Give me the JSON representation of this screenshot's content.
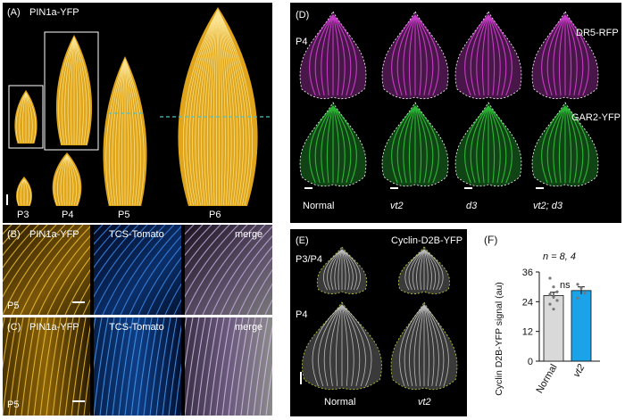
{
  "panelA": {
    "id": "(A)",
    "marker": "PIN1a-YFP",
    "stages": [
      "P3",
      "P4",
      "P5",
      "P6"
    ],
    "colors": {
      "leaf": "#e0a51a",
      "vein": "#fff0a8",
      "dash": "#4ec1c6"
    }
  },
  "panelB": {
    "id": "(B)",
    "labels": [
      "PIN1a-YFP",
      "TCS-Tomato",
      "merge"
    ],
    "stage": "P5"
  },
  "panelC": {
    "id": "(C)",
    "labels": [
      "PIN1a-YFP",
      "TCS-Tomato",
      "merge"
    ],
    "stage": "P5"
  },
  "panelD": {
    "id": "(D)",
    "stage": "P4",
    "marker_top": "DR5-RFP",
    "marker_bottom": "GAR2-YFP",
    "genotypes": [
      "Normal",
      "vt2",
      "d3",
      "vt2; d3"
    ],
    "colors": {
      "magenta": "#d23fd2",
      "green": "#2fc23a"
    }
  },
  "panelE": {
    "id": "(E)",
    "marker": "Cyclin-D2B-YFP",
    "rows": [
      "P3/P4",
      "P4"
    ],
    "genotypes": [
      "Normal",
      "vt2"
    ]
  },
  "panelF": {
    "id": "(F)",
    "n_label": "n = 8, 4",
    "sig_label": "ns"
  },
  "chart_data": {
    "type": "bar",
    "categories": [
      "Normal",
      "vt2"
    ],
    "values": [
      26.5,
      28.5
    ],
    "errors": [
      1.3,
      1.5
    ],
    "points": [
      [
        33.5,
        30,
        28,
        27,
        26,
        24.5,
        23,
        21
      ],
      [
        31,
        29.5,
        27.5,
        25.5
      ]
    ],
    "ylabel": "Cyclin D2B-YFP signal (au)",
    "yticks": [
      0,
      12,
      24,
      36
    ],
    "ylim": [
      0,
      36
    ],
    "colors": [
      "#d9d9d9",
      "#1aa3e8"
    ]
  }
}
